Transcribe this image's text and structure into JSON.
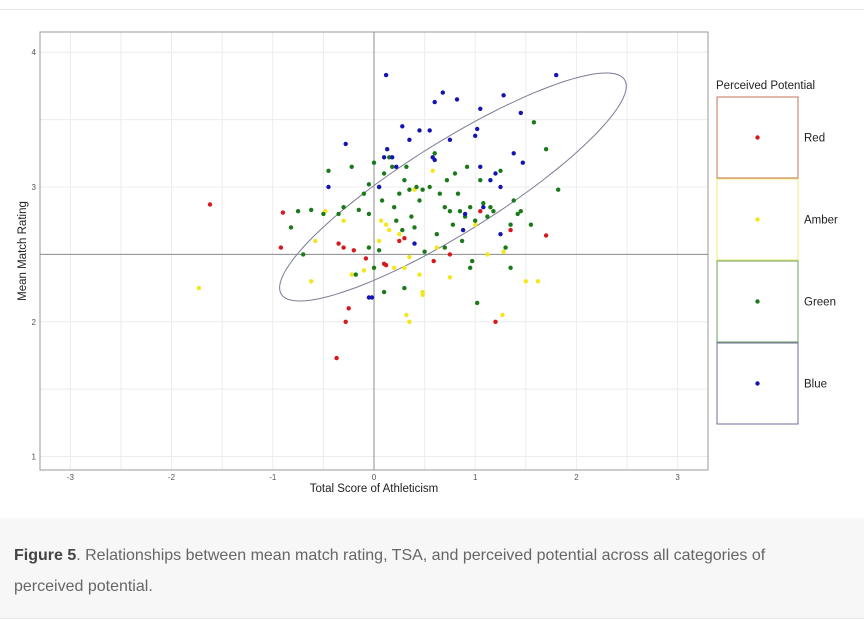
{
  "chart_data": {
    "type": "scatter",
    "xlabel": "Total Score of Athleticism",
    "ylabel": "Mean Match Rating",
    "xlim": [
      -3.3,
      3.3
    ],
    "ylim": [
      0.9,
      4.15
    ],
    "x_ticks": [
      "-3",
      "-2",
      "-1",
      "0",
      "1",
      "2",
      "3"
    ],
    "y_ticks": [
      "1",
      "2",
      "3",
      "4"
    ],
    "grid": true,
    "reference_lines": {
      "x": 0,
      "y": 2.5
    },
    "legend": {
      "title": "Perceived Potential",
      "position": "right"
    },
    "ellipse": {
      "center": [
        0.78,
        3.0
      ],
      "semi_axis_major": 2.0,
      "semi_axis_minor": 0.45,
      "rotation_deg": 32
    },
    "series": [
      {
        "name": "Red",
        "color": "#d7191c",
        "points": [
          [
            -1.62,
            2.87
          ],
          [
            -0.9,
            2.81
          ],
          [
            -0.92,
            2.55
          ],
          [
            -0.35,
            2.58
          ],
          [
            -0.3,
            2.55
          ],
          [
            -0.2,
            2.53
          ],
          [
            -0.25,
            2.1
          ],
          [
            -0.28,
            2.0
          ],
          [
            -0.37,
            1.73
          ],
          [
            -0.08,
            2.47
          ],
          [
            0.1,
            2.43
          ],
          [
            0.12,
            2.42
          ],
          [
            0.25,
            2.6
          ],
          [
            0.3,
            2.62
          ],
          [
            0.59,
            2.45
          ],
          [
            0.75,
            2.5
          ],
          [
            1.05,
            2.82
          ],
          [
            1.2,
            2.0
          ],
          [
            1.35,
            2.68
          ],
          [
            1.7,
            2.64
          ]
        ]
      },
      {
        "name": "Amber",
        "color": "#f5e51b",
        "points": [
          [
            -1.73,
            2.25
          ],
          [
            -0.62,
            2.3
          ],
          [
            -0.58,
            2.6
          ],
          [
            -0.48,
            2.82
          ],
          [
            -0.3,
            2.75
          ],
          [
            -0.22,
            2.35
          ],
          [
            -0.1,
            2.38
          ],
          [
            0.05,
            2.6
          ],
          [
            0.07,
            2.75
          ],
          [
            0.12,
            2.72
          ],
          [
            0.15,
            2.68
          ],
          [
            0.2,
            2.4
          ],
          [
            0.25,
            2.65
          ],
          [
            0.3,
            2.4
          ],
          [
            0.32,
            2.05
          ],
          [
            0.35,
            2.0
          ],
          [
            0.35,
            2.48
          ],
          [
            0.4,
            2.98
          ],
          [
            0.45,
            2.35
          ],
          [
            0.48,
            2.22
          ],
          [
            0.48,
            2.2
          ],
          [
            0.58,
            3.12
          ],
          [
            0.62,
            2.55
          ],
          [
            0.75,
            2.33
          ],
          [
            1.0,
            2.72
          ],
          [
            1.12,
            2.5
          ],
          [
            1.27,
            2.05
          ],
          [
            1.5,
            2.3
          ],
          [
            1.62,
            2.3
          ],
          [
            1.28,
            2.52
          ]
        ]
      },
      {
        "name": "Green",
        "color": "#1a7a1a",
        "points": [
          [
            -0.82,
            2.7
          ],
          [
            -0.75,
            2.82
          ],
          [
            -0.7,
            2.5
          ],
          [
            -0.62,
            2.83
          ],
          [
            -0.5,
            2.8
          ],
          [
            -0.45,
            3.12
          ],
          [
            -0.35,
            2.8
          ],
          [
            -0.3,
            2.85
          ],
          [
            -0.22,
            3.15
          ],
          [
            -0.15,
            2.83
          ],
          [
            -0.1,
            2.95
          ],
          [
            -0.05,
            2.8
          ],
          [
            -0.05,
            3.02
          ],
          [
            0.0,
            3.18
          ],
          [
            0.05,
            3.0
          ],
          [
            0.08,
            2.9
          ],
          [
            0.1,
            3.1
          ],
          [
            0.15,
            3.22
          ],
          [
            0.18,
            3.15
          ],
          [
            0.2,
            2.85
          ],
          [
            0.22,
            2.75
          ],
          [
            0.25,
            2.95
          ],
          [
            0.28,
            2.68
          ],
          [
            0.3,
            3.05
          ],
          [
            0.32,
            3.15
          ],
          [
            0.35,
            2.98
          ],
          [
            0.37,
            2.78
          ],
          [
            0.4,
            2.7
          ],
          [
            0.42,
            3.0
          ],
          [
            0.45,
            2.9
          ],
          [
            0.48,
            2.98
          ],
          [
            0.5,
            2.52
          ],
          [
            0.55,
            3.0
          ],
          [
            0.6,
            3.25
          ],
          [
            0.62,
            2.65
          ],
          [
            0.65,
            2.95
          ],
          [
            0.7,
            2.85
          ],
          [
            0.72,
            3.05
          ],
          [
            0.75,
            2.82
          ],
          [
            0.78,
            2.72
          ],
          [
            0.8,
            3.1
          ],
          [
            0.83,
            2.95
          ],
          [
            0.85,
            2.82
          ],
          [
            0.87,
            2.6
          ],
          [
            0.9,
            2.78
          ],
          [
            0.92,
            3.15
          ],
          [
            0.95,
            2.85
          ],
          [
            0.97,
            2.45
          ],
          [
            1.0,
            2.75
          ],
          [
            1.05,
            3.05
          ],
          [
            1.08,
            2.88
          ],
          [
            1.12,
            2.78
          ],
          [
            1.15,
            2.85
          ],
          [
            1.18,
            2.82
          ],
          [
            1.25,
            3.12
          ],
          [
            1.3,
            2.55
          ],
          [
            1.35,
            2.72
          ],
          [
            1.38,
            2.9
          ],
          [
            1.42,
            2.8
          ],
          [
            1.45,
            2.82
          ],
          [
            1.55,
            2.72
          ],
          [
            1.58,
            3.48
          ],
          [
            1.7,
            3.28
          ],
          [
            1.82,
            2.98
          ],
          [
            1.02,
            2.14
          ],
          [
            1.35,
            2.4
          ],
          [
            0.3,
            2.25
          ],
          [
            0.1,
            2.22
          ],
          [
            0.0,
            2.4
          ],
          [
            -0.05,
            2.55
          ],
          [
            -0.18,
            2.35
          ],
          [
            0.05,
            2.53
          ],
          [
            0.95,
            2.4
          ],
          [
            0.7,
            2.55
          ]
        ]
      },
      {
        "name": "Blue",
        "color": "#1414b4",
        "points": [
          [
            -0.45,
            3.0
          ],
          [
            -0.28,
            3.32
          ],
          [
            0.1,
            3.22
          ],
          [
            0.12,
            3.83
          ],
          [
            0.13,
            3.28
          ],
          [
            0.18,
            3.22
          ],
          [
            0.22,
            3.15
          ],
          [
            0.28,
            3.45
          ],
          [
            0.35,
            3.35
          ],
          [
            0.4,
            2.58
          ],
          [
            0.45,
            3.42
          ],
          [
            0.55,
            3.42
          ],
          [
            0.58,
            3.22
          ],
          [
            0.6,
            3.2
          ],
          [
            0.6,
            3.63
          ],
          [
            0.68,
            3.7
          ],
          [
            0.75,
            3.35
          ],
          [
            0.82,
            3.65
          ],
          [
            0.88,
            2.68
          ],
          [
            1.0,
            3.38
          ],
          [
            1.02,
            3.43
          ],
          [
            1.05,
            3.15
          ],
          [
            1.05,
            3.58
          ],
          [
            1.08,
            2.85
          ],
          [
            1.15,
            3.05
          ],
          [
            1.2,
            3.1
          ],
          [
            1.25,
            3.0
          ],
          [
            1.28,
            3.68
          ],
          [
            1.38,
            3.25
          ],
          [
            1.45,
            3.55
          ],
          [
            1.47,
            3.18
          ],
          [
            1.8,
            3.83
          ],
          [
            0.05,
            3.0
          ],
          [
            -0.02,
            2.18
          ],
          [
            -0.05,
            2.18
          ],
          [
            0.9,
            2.8
          ],
          [
            1.25,
            2.65
          ]
        ]
      }
    ]
  },
  "caption": {
    "label": "Figure 5",
    "text": ". Relationships between mean match rating, TSA, and perceived potential across all categories of perceived potential."
  }
}
